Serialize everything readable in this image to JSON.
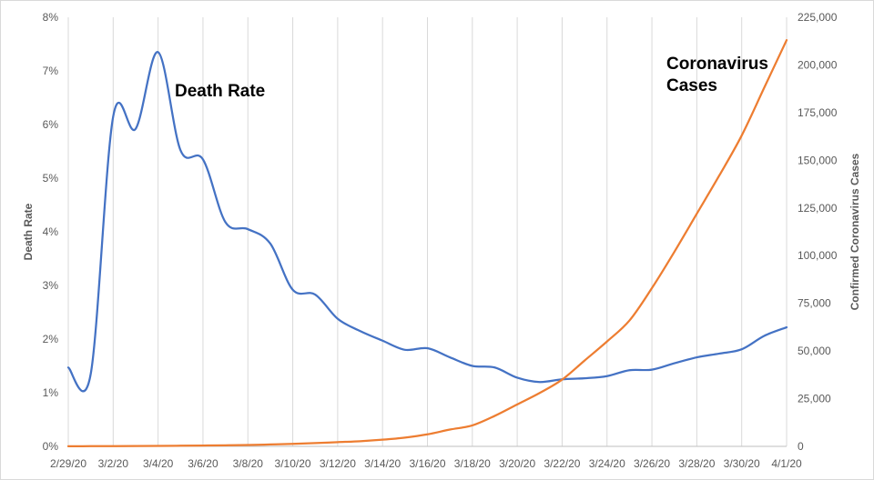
{
  "chart_data": {
    "type": "line",
    "x": [
      "2/29/20",
      "3/1/20",
      "3/2/20",
      "3/3/20",
      "3/4/20",
      "3/5/20",
      "3/6/20",
      "3/7/20",
      "3/8/20",
      "3/9/20",
      "3/10/20",
      "3/11/20",
      "3/12/20",
      "3/13/20",
      "3/14/20",
      "3/15/20",
      "3/16/20",
      "3/17/20",
      "3/18/20",
      "3/19/20",
      "3/20/20",
      "3/21/20",
      "3/22/20",
      "3/23/20",
      "3/24/20",
      "3/25/20",
      "3/26/20",
      "3/27/20",
      "3/28/20",
      "3/29/20",
      "3/30/20",
      "3/31/20",
      "4/1/20"
    ],
    "x_tick_labels": [
      "2/29/20",
      "3/2/20",
      "3/4/20",
      "3/6/20",
      "3/8/20",
      "3/10/20",
      "3/12/20",
      "3/14/20",
      "3/16/20",
      "3/18/20",
      "3/20/20",
      "3/22/20",
      "3/24/20",
      "3/26/20",
      "3/28/20",
      "3/30/20",
      "4/1/20"
    ],
    "series": [
      {
        "name": "Death Rate",
        "axis": "left",
        "color": "#4472c4",
        "values": [
          1.47,
          1.35,
          6.15,
          5.92,
          7.35,
          5.52,
          5.35,
          4.18,
          4.05,
          3.78,
          2.92,
          2.83,
          2.38,
          2.15,
          1.97,
          1.8,
          1.83,
          1.66,
          1.5,
          1.47,
          1.28,
          1.2,
          1.25,
          1.27,
          1.31,
          1.42,
          1.43,
          1.55,
          1.66,
          1.73,
          1.81,
          2.06,
          2.22
        ]
      },
      {
        "name": "Coronavirus Cases",
        "axis": "right",
        "color": "#ed7d31",
        "values": [
          70,
          90,
          110,
          160,
          230,
          330,
          440,
          560,
          720,
          1000,
          1300,
          1700,
          2200,
          2700,
          3500,
          4600,
          6300,
          8800,
          11000,
          16000,
          22000,
          28000,
          35000,
          45000,
          55000,
          66000,
          83000,
          102000,
          122000,
          142000,
          163000,
          188000,
          213000
        ]
      }
    ],
    "y_left": {
      "label": "Death Rate",
      "min": 0,
      "max": 8,
      "ticks": [
        "0%",
        "1%",
        "2%",
        "3%",
        "4%",
        "5%",
        "6%",
        "7%",
        "8%"
      ]
    },
    "y_right": {
      "label": "Confirmed Coronavirus Cases",
      "min": 0,
      "max": 225000,
      "ticks": [
        "0",
        "25,000",
        "50,000",
        "75,000",
        "100,000",
        "125,000",
        "150,000",
        "175,000",
        "200,000",
        "225,000"
      ]
    },
    "annotations": [
      {
        "text": "Death Rate",
        "lines": [
          "Death Rate"
        ]
      },
      {
        "text": "Coronavirus Cases",
        "lines": [
          "Coronavirus",
          "Cases"
        ]
      }
    ],
    "grid": "vertical",
    "legend": "none"
  }
}
